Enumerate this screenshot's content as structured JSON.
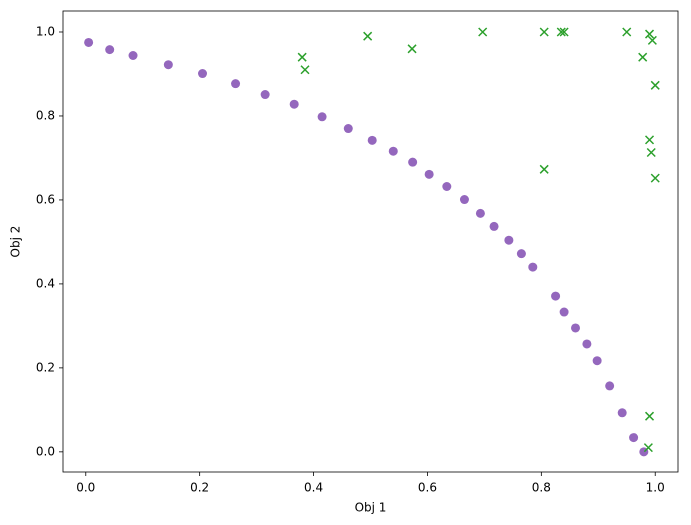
{
  "chart_data": {
    "type": "scatter",
    "x_label": "Obj 1",
    "y_label": "Obj 2",
    "xlim": [
      -0.04,
      1.04
    ],
    "ylim": [
      -0.048,
      1.05
    ],
    "xticks": [
      {
        "value": 0,
        "label": "0.0"
      },
      0.2,
      0.4,
      0.6,
      0.8,
      {
        "value": 1,
        "label": "1.0"
      }
    ],
    "yticks": [
      {
        "value": 0,
        "label": "0.0"
      },
      0.2,
      0.4,
      0.6,
      0.8,
      {
        "value": 1,
        "label": "1.0"
      }
    ],
    "grid": false,
    "series": [
      {
        "color": "#9467bd",
        "marker": "circle",
        "x": [
          0.005,
          0.042,
          0.083,
          0.145,
          0.205,
          0.263,
          0.315,
          0.366,
          0.415,
          0.461,
          0.503,
          0.54,
          0.574,
          0.603,
          0.634,
          0.665,
          0.693,
          0.717,
          0.743,
          0.765,
          0.785,
          0.825,
          0.84,
          0.86,
          0.88,
          0.898,
          0.92,
          0.942,
          0.962,
          0.98
        ],
        "values": [
          0.975,
          0.958,
          0.944,
          0.922,
          0.901,
          0.877,
          0.851,
          0.828,
          0.798,
          0.77,
          0.742,
          0.716,
          0.69,
          0.661,
          0.632,
          0.601,
          0.568,
          0.537,
          0.504,
          0.472,
          0.44,
          0.371,
          0.333,
          0.295,
          0.257,
          0.217,
          0.157,
          0.093,
          0.034,
          0.0
        ]
      },
      {
        "color": "#2ca02c",
        "marker": "x",
        "x": [
          0.38,
          0.385,
          0.495,
          0.573,
          0.697,
          0.805,
          0.835,
          0.84,
          0.95,
          0.978,
          0.99,
          0.995,
          1.0,
          0.99,
          0.993,
          1.0,
          0.805,
          0.99,
          0.988
        ],
        "values": [
          0.94,
          0.91,
          0.99,
          0.96,
          1.0,
          1.0,
          1.0,
          1.0,
          1.0,
          0.94,
          0.995,
          0.98,
          0.873,
          0.743,
          0.713,
          0.652,
          0.673,
          0.085,
          0.01
        ]
      }
    ]
  }
}
